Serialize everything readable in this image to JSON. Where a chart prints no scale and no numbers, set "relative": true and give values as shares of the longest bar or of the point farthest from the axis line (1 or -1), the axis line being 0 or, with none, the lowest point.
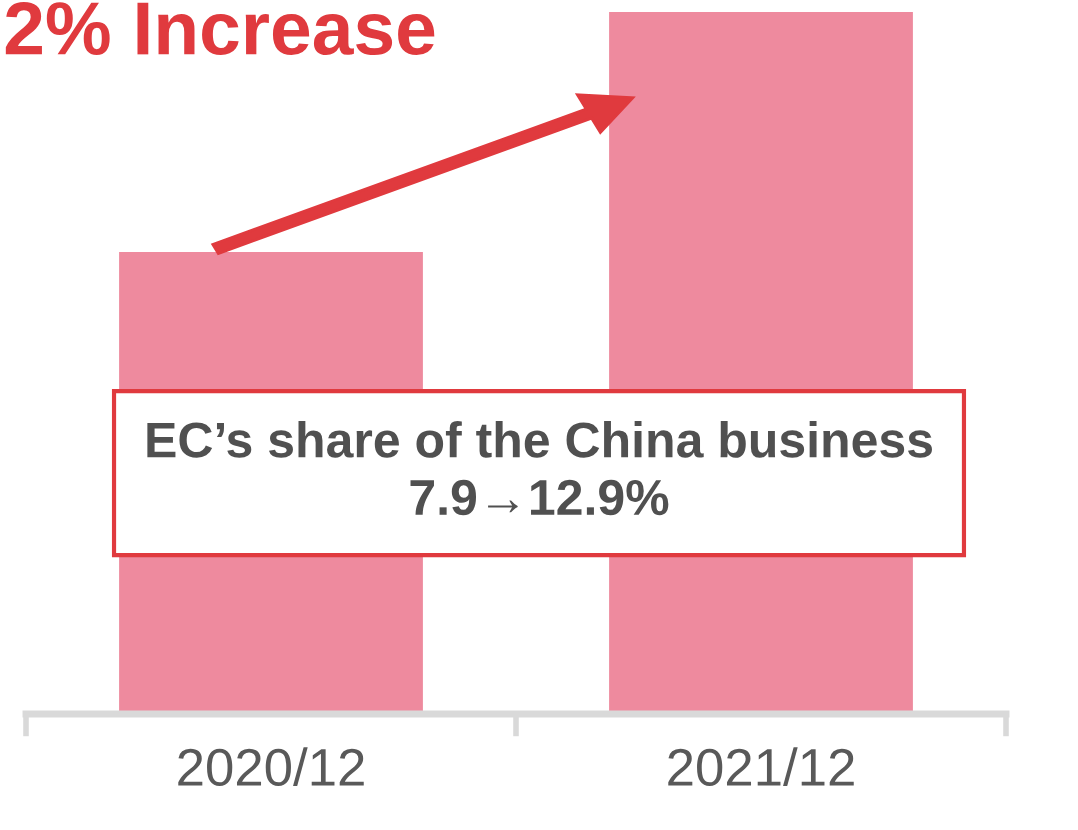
{
  "chart_data": {
    "type": "bar",
    "title": "2% Increase",
    "relative": true,
    "categories": [
      "2020/12",
      "2021/12"
    ],
    "values": [
      0.658,
      1
    ],
    "color": "#ee8a9e",
    "annotations": [
      "EC’s share of the China business\n7.9→12.9%"
    ],
    "grid": false,
    "legend": false
  }
}
